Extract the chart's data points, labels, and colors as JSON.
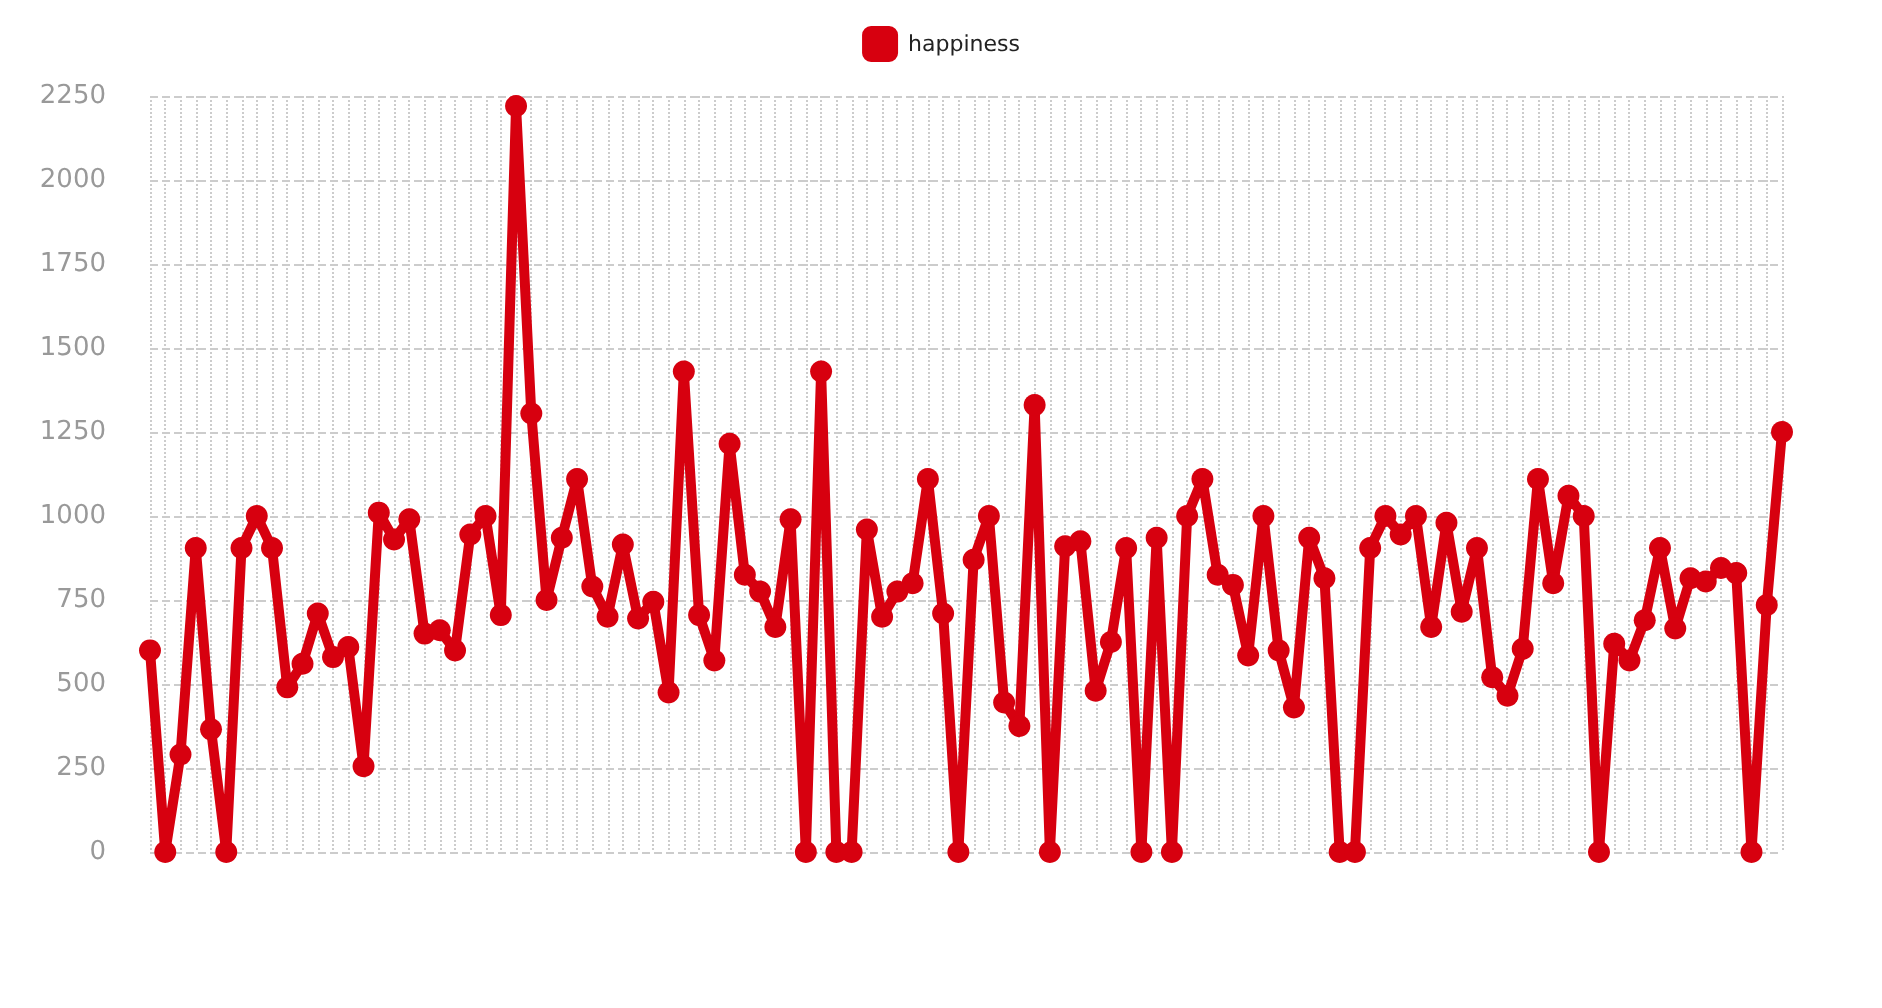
{
  "chart_data": {
    "type": "line",
    "categories": [
      null,
      null,
      null,
      null,
      null,
      null,
      null,
      null,
      null,
      null,
      null,
      null,
      null,
      null,
      null,
      null,
      null,
      null,
      null,
      null,
      null,
      null,
      null,
      null,
      null,
      null,
      null,
      null,
      null,
      null,
      null,
      null,
      null,
      null,
      null,
      null,
      null,
      null,
      null,
      null,
      null,
      null,
      null,
      null,
      null,
      null,
      null,
      null,
      null,
      null,
      null,
      null,
      null,
      null,
      null,
      null,
      null,
      null,
      null,
      null,
      null,
      null,
      null,
      null,
      null,
      null,
      null,
      null,
      null,
      null,
      null,
      null,
      null,
      null,
      null,
      null,
      null,
      null,
      null,
      null,
      null,
      null,
      null,
      null,
      null,
      null,
      null,
      null,
      null,
      null,
      null,
      null,
      null,
      null,
      null,
      null,
      null,
      null,
      null,
      null,
      null,
      null,
      null,
      null,
      null,
      null,
      null,
      null
    ],
    "series": [
      {
        "name": "happiness",
        "color": "#d7000f",
        "values": [
          600,
          0,
          290,
          905,
          365,
          0,
          905,
          1000,
          905,
          490,
          560,
          710,
          580,
          610,
          255,
          1010,
          930,
          990,
          650,
          660,
          600,
          945,
          1000,
          705,
          2220,
          1305,
          750,
          935,
          1110,
          790,
          700,
          915,
          695,
          745,
          475,
          1430,
          705,
          570,
          1215,
          825,
          775,
          670,
          990,
          0,
          1430,
          0,
          0,
          960,
          700,
          775,
          800,
          1110,
          710,
          0,
          870,
          1000,
          445,
          375,
          1330,
          0,
          910,
          925,
          480,
          625,
          905,
          0,
          935,
          0,
          1000,
          1110,
          825,
          795,
          585,
          1000,
          600,
          430,
          935,
          815,
          0,
          0,
          905,
          1000,
          945,
          1000,
          670,
          980,
          715,
          905,
          520,
          465,
          605,
          1110,
          800,
          1060,
          1000,
          0,
          620,
          570,
          690,
          905,
          665,
          815,
          805,
          845,
          830,
          0,
          735,
          1250
        ]
      }
    ],
    "ylim": [
      0,
      2250
    ],
    "yticks": [
      0,
      250,
      500,
      750,
      1000,
      1250,
      1500,
      1750,
      2000,
      2250
    ],
    "grid": true,
    "legend": "top",
    "marker": "circle",
    "line_style": "solid"
  }
}
